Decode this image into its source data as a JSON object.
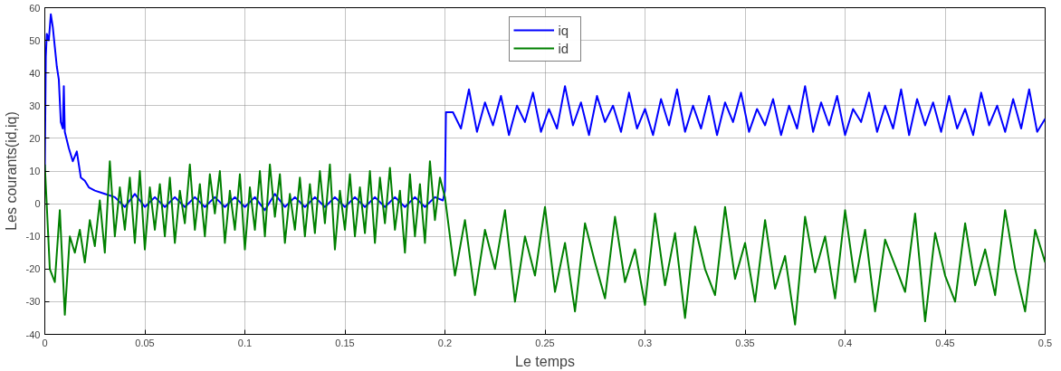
{
  "chart_data": {
    "type": "line",
    "xlabel": "Le temps",
    "ylabel": "Les courants(id,iq)",
    "xlim": [
      0,
      0.5
    ],
    "xticks": [
      0,
      0.05,
      0.1,
      0.15,
      0.2,
      0.25,
      0.3,
      0.35,
      0.4,
      0.45,
      0.5
    ],
    "ylim": [
      -40,
      60
    ],
    "yticks": [
      -40,
      -30,
      -20,
      -10,
      0,
      10,
      20,
      30,
      40,
      50,
      60
    ],
    "grid": true,
    "legend": "top",
    "line_style": "solid",
    "marker": "none",
    "series": [
      {
        "name": "iq",
        "color": "#0000ff",
        "x": [
          0,
          0.0005,
          0.001,
          0.002,
          0.003,
          0.004,
          0.005,
          0.006,
          0.007,
          0.008,
          0.009,
          0.0095,
          0.01,
          0.012,
          0.014,
          0.016,
          0.018,
          0.02,
          0.022,
          0.025,
          0.03,
          0.035,
          0.04,
          0.045,
          0.05,
          0.055,
          0.06,
          0.065,
          0.07,
          0.075,
          0.08,
          0.085,
          0.09,
          0.095,
          0.1,
          0.105,
          0.11,
          0.115,
          0.12,
          0.125,
          0.13,
          0.135,
          0.14,
          0.145,
          0.15,
          0.155,
          0.16,
          0.165,
          0.17,
          0.175,
          0.18,
          0.185,
          0.19,
          0.195,
          0.199,
          0.2,
          0.2005,
          0.204,
          0.208,
          0.212,
          0.216,
          0.22,
          0.224,
          0.228,
          0.232,
          0.236,
          0.24,
          0.244,
          0.248,
          0.252,
          0.256,
          0.26,
          0.264,
          0.268,
          0.272,
          0.276,
          0.28,
          0.284,
          0.288,
          0.292,
          0.296,
          0.3,
          0.304,
          0.308,
          0.312,
          0.316,
          0.32,
          0.324,
          0.328,
          0.332,
          0.336,
          0.34,
          0.344,
          0.348,
          0.352,
          0.356,
          0.36,
          0.364,
          0.368,
          0.372,
          0.376,
          0.38,
          0.384,
          0.388,
          0.392,
          0.396,
          0.4,
          0.404,
          0.408,
          0.412,
          0.416,
          0.42,
          0.424,
          0.428,
          0.432,
          0.436,
          0.44,
          0.444,
          0.448,
          0.452,
          0.456,
          0.46,
          0.464,
          0.468,
          0.472,
          0.476,
          0.48,
          0.484,
          0.488,
          0.492,
          0.496,
          0.5
        ],
        "values": [
          10,
          45,
          52,
          50,
          58,
          54,
          48,
          42,
          38,
          25,
          23,
          36,
          22,
          17,
          13,
          16,
          8,
          7,
          5,
          4,
          3,
          2,
          -1,
          3,
          -1,
          2,
          -1,
          2,
          -1,
          2,
          -1,
          2,
          -1,
          2,
          -1,
          2,
          -2,
          3,
          -1,
          2,
          -1,
          2,
          -1,
          2,
          -1,
          2,
          -1,
          2,
          -1,
          2,
          -1,
          2,
          -1,
          2,
          1,
          4,
          28,
          28,
          23,
          35,
          22,
          31,
          24,
          33,
          21,
          30,
          25,
          34,
          22,
          29,
          23,
          36,
          24,
          31,
          21,
          33,
          25,
          30,
          22,
          34,
          23,
          29,
          21,
          32,
          24,
          35,
          22,
          30,
          23,
          33,
          21,
          31,
          25,
          34,
          22,
          29,
          24,
          32,
          21,
          30,
          23,
          36,
          22,
          31,
          24,
          33,
          21,
          29,
          25,
          34,
          22,
          30,
          23,
          35,
          21,
          32,
          24,
          31,
          22,
          33,
          23,
          29,
          21,
          34,
          24,
          30,
          22,
          32,
          23,
          35,
          22,
          26
        ]
      },
      {
        "name": "id",
        "color": "#008000",
        "x": [
          0,
          0.0025,
          0.005,
          0.0075,
          0.01,
          0.0125,
          0.015,
          0.0175,
          0.02,
          0.0225,
          0.025,
          0.0275,
          0.03,
          0.0325,
          0.035,
          0.0375,
          0.04,
          0.0425,
          0.045,
          0.0475,
          0.05,
          0.0525,
          0.055,
          0.0575,
          0.06,
          0.0625,
          0.065,
          0.0675,
          0.07,
          0.0725,
          0.075,
          0.0775,
          0.08,
          0.0825,
          0.085,
          0.0875,
          0.09,
          0.0925,
          0.095,
          0.0975,
          0.1,
          0.1025,
          0.105,
          0.1075,
          0.11,
          0.1125,
          0.115,
          0.1175,
          0.12,
          0.1225,
          0.125,
          0.1275,
          0.13,
          0.1325,
          0.135,
          0.1375,
          0.14,
          0.1425,
          0.145,
          0.1475,
          0.15,
          0.1525,
          0.155,
          0.1575,
          0.16,
          0.1625,
          0.165,
          0.1675,
          0.17,
          0.1725,
          0.175,
          0.1775,
          0.18,
          0.1825,
          0.185,
          0.1875,
          0.19,
          0.1925,
          0.195,
          0.1975,
          0.2,
          0.205,
          0.21,
          0.215,
          0.22,
          0.225,
          0.23,
          0.235,
          0.24,
          0.245,
          0.25,
          0.255,
          0.26,
          0.265,
          0.27,
          0.275,
          0.28,
          0.285,
          0.29,
          0.295,
          0.3,
          0.305,
          0.31,
          0.315,
          0.32,
          0.325,
          0.33,
          0.335,
          0.34,
          0.345,
          0.35,
          0.355,
          0.36,
          0.365,
          0.37,
          0.375,
          0.38,
          0.385,
          0.39,
          0.395,
          0.4,
          0.405,
          0.41,
          0.415,
          0.42,
          0.425,
          0.43,
          0.435,
          0.44,
          0.445,
          0.45,
          0.455,
          0.46,
          0.465,
          0.47,
          0.475,
          0.48,
          0.485,
          0.49,
          0.495,
          0.5
        ],
        "values": [
          12,
          -20,
          -24,
          -2,
          -34,
          -10,
          -15,
          -8,
          -18,
          -5,
          -13,
          1,
          -15,
          13,
          -10,
          5,
          -8,
          8,
          -12,
          10,
          -14,
          5,
          -8,
          6,
          -10,
          8,
          -12,
          4,
          -6,
          12,
          -8,
          6,
          -10,
          9,
          -3,
          10,
          -12,
          4,
          -8,
          9,
          -14,
          5,
          -8,
          10,
          -10,
          12,
          -4,
          9,
          -12,
          3,
          -8,
          8,
          -10,
          6,
          -9,
          10,
          -6,
          12,
          -14,
          4,
          -8,
          9,
          -10,
          5,
          -9,
          10,
          -12,
          8,
          -6,
          11,
          -8,
          4,
          -15,
          9,
          -10,
          6,
          -12,
          13,
          -5,
          8,
          2,
          -22,
          -5,
          -28,
          -8,
          -20,
          -2,
          -30,
          -10,
          -22,
          -1,
          -27,
          -12,
          -33,
          -6,
          -18,
          -29,
          -4,
          -24,
          -14,
          -31,
          -3,
          -25,
          -9,
          -35,
          -7,
          -20,
          -28,
          -1,
          -23,
          -12,
          -30,
          -5,
          -26,
          -16,
          -37,
          -4,
          -21,
          -10,
          -29,
          -2,
          -24,
          -8,
          -33,
          -11,
          -19,
          -27,
          -3,
          -36,
          -9,
          -22,
          -30,
          -6,
          -25,
          -14,
          -28,
          -2,
          -20,
          -33,
          -8,
          -18
        ]
      }
    ]
  }
}
